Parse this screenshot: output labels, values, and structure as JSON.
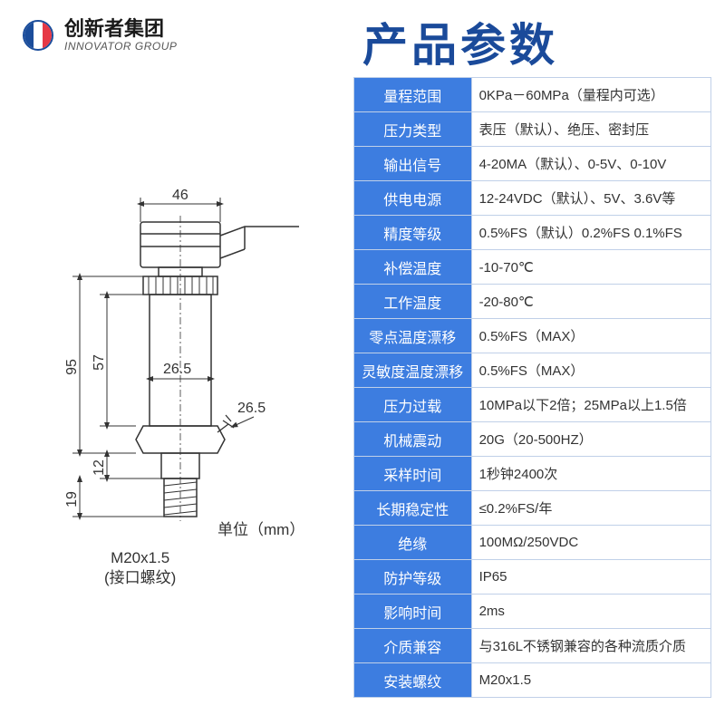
{
  "brand": {
    "cn": "创新者集团",
    "en": "INNOVATOR GROUP"
  },
  "title": "产品参数",
  "colors": {
    "accent": "#1a4a9a",
    "label_bg": "#3d7de0",
    "label_fg": "#ffffff",
    "value_fg": "#333333",
    "border": "#c0d0e8"
  },
  "specs": [
    {
      "label": "量程范围",
      "value": "0KPa－60MPa（量程内可选）"
    },
    {
      "label": "压力类型",
      "value": "表压（默认）、绝压、密封压"
    },
    {
      "label": "输出信号",
      "value": "4-20MA（默认）、0-5V、0-10V"
    },
    {
      "label": "供电电源",
      "value": "12-24VDC（默认）、5V、3.6V等"
    },
    {
      "label": "精度等级",
      "value": "0.5%FS（默认）0.2%FS 0.1%FS"
    },
    {
      "label": "补偿温度",
      "value": "-10-70℃"
    },
    {
      "label": "工作温度",
      "value": "-20-80℃"
    },
    {
      "label": "零点温度漂移",
      "value": "0.5%FS（MAX）"
    },
    {
      "label": "灵敏度温度漂移",
      "value": "0.5%FS（MAX）"
    },
    {
      "label": "压力过载",
      "value": "10MPa以下2倍；25MPa以上1.5倍"
    },
    {
      "label": "机械震动",
      "value": "20G（20-500HZ）"
    },
    {
      "label": "采样时间",
      "value": "1秒钟2400次"
    },
    {
      "label": "长期稳定性",
      "value": "≤0.2%FS/年"
    },
    {
      "label": "绝缘",
      "value": "100MΩ/250VDC"
    },
    {
      "label": "防护等级",
      "value": "IP65"
    },
    {
      "label": "影响时间",
      "value": "2ms"
    },
    {
      "label": "介质兼容",
      "value": "与316L不锈钢兼容的各种流质介质"
    },
    {
      "label": "安装螺纹",
      "value": "M20x1.5"
    }
  ],
  "diagram": {
    "unit_text": "单位（mm）",
    "thread_label_line1": "M20x1.5",
    "thread_label_line2": "(接口螺纹)",
    "dims": {
      "top_w": "46",
      "mid_w": "26.5",
      "hex_w": "26.5",
      "h19": "19",
      "h12": "12",
      "h57": "57",
      "h95": "95"
    }
  }
}
